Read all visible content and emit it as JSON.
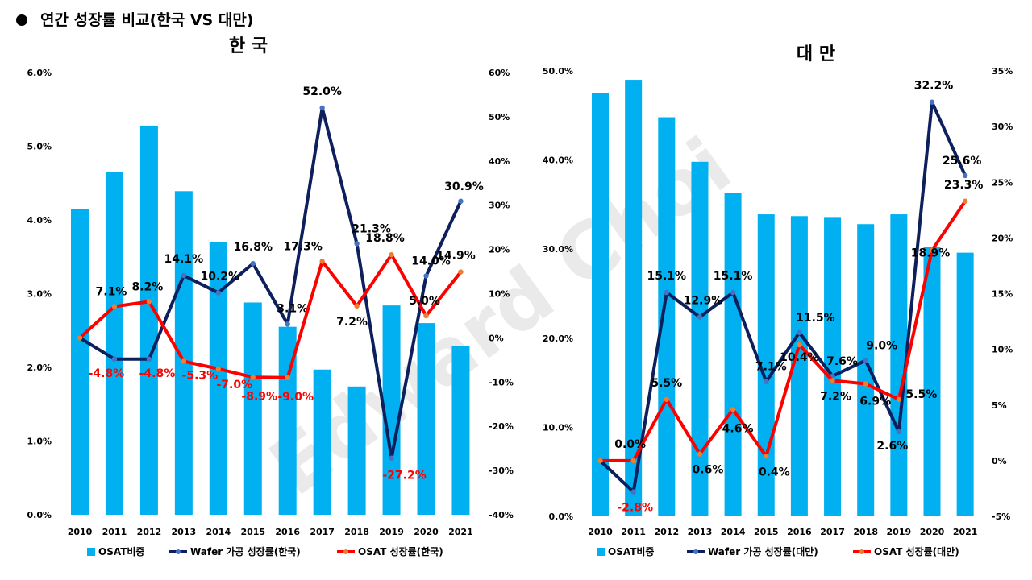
{
  "page": {
    "title": "연간 성장률 비교(한국 VS 대만)",
    "watermark": "Edward Choi"
  },
  "colors": {
    "bar": "#00b0f0",
    "wafer": "#0d1f5c",
    "wafer_marker": "#4472c4",
    "osat": "#ff0000",
    "osat_marker": "#ed7d31",
    "negative_label": "#ff0000"
  },
  "chart_data": [
    {
      "type": "bar",
      "title": "한 국",
      "categories": [
        "2010",
        "2011",
        "2012",
        "2013",
        "2014",
        "2015",
        "2016",
        "2017",
        "2018",
        "2019",
        "2020",
        "2021"
      ],
      "y_left": {
        "min": 0,
        "max": 6,
        "step": 1,
        "ticks": [
          "0.0%",
          "1.0%",
          "2.0%",
          "3.0%",
          "4.0%",
          "5.0%",
          "6.0%"
        ]
      },
      "y_right": {
        "min": -40,
        "max": 60,
        "step": 10,
        "ticks": [
          "-40%",
          "-30%",
          "-20%",
          "-10%",
          "0%",
          "10%",
          "20%",
          "30%",
          "40%",
          "50%",
          "60%"
        ]
      },
      "series": [
        {
          "name": "OSAT비중",
          "type": "bar",
          "axis": "left",
          "values": [
            4.15,
            4.65,
            5.28,
            4.39,
            3.7,
            2.88,
            2.55,
            1.97,
            1.74,
            2.84,
            2.6,
            2.29
          ]
        },
        {
          "name": "Wafer 가공 성장률(한국)",
          "type": "line",
          "axis": "right",
          "values": [
            0.0,
            -4.8,
            -4.8,
            14.1,
            10.2,
            16.8,
            3.1,
            52.0,
            21.3,
            -27.2,
            14.0,
            30.9
          ],
          "labels": [
            "",
            "",
            "",
            "14.1%",
            "10.2%",
            "16.8%",
            "3.1%",
            "52.0%",
            "21.3%",
            "",
            "14.0%",
            "30.9%"
          ]
        },
        {
          "name": "OSAT 성장률(한국)",
          "type": "line",
          "axis": "right",
          "values": [
            0.0,
            7.1,
            8.2,
            -5.3,
            -7.0,
            -8.9,
            -9.0,
            17.3,
            7.2,
            18.8,
            5.0,
            14.9
          ],
          "labels": [
            "",
            "7.1%",
            "8.2%",
            "-5.3%",
            "-7.0%",
            "-8.9%",
            "-9.0%",
            "17.3%",
            "7.2%",
            "18.8%",
            "5.0%",
            "14.9%"
          ]
        }
      ],
      "extra_labels": [
        "-4.8%",
        "-4.8%",
        "-27.2%"
      ]
    },
    {
      "type": "bar",
      "title": "대 만",
      "categories": [
        "2010",
        "2011",
        "2012",
        "2013",
        "2014",
        "2015",
        "2016",
        "2017",
        "2018",
        "2019",
        "2020",
        "2021"
      ],
      "y_left": {
        "min": 0,
        "max": 50,
        "step": 10,
        "ticks": [
          "0.0%",
          "10.0%",
          "20.0%",
          "30.0%",
          "40.0%",
          "50.0%"
        ]
      },
      "y_right": {
        "min": -5,
        "max": 35,
        "step": 5,
        "ticks": [
          "-5%",
          "0%",
          "5%",
          "10%",
          "15%",
          "20%",
          "25%",
          "30%",
          "35%"
        ]
      },
      "series": [
        {
          "name": "OSAT비중",
          "type": "bar",
          "axis": "left",
          "values": [
            47.5,
            49.0,
            44.8,
            39.8,
            36.3,
            33.9,
            33.7,
            33.6,
            32.8,
            33.9,
            30.2,
            29.6
          ]
        },
        {
          "name": "Wafer 가공 성장률(대만)",
          "type": "line",
          "axis": "right",
          "values": [
            0.0,
            -2.8,
            15.1,
            12.9,
            15.1,
            7.1,
            11.5,
            7.6,
            9.0,
            2.6,
            32.2,
            25.6
          ],
          "labels": [
            "",
            "",
            "15.1%",
            "12.9%",
            "15.1%",
            "7.1%",
            "11.5%",
            "7.6%",
            "9.0%",
            "2.6%",
            "32.2%",
            "25.6%"
          ]
        },
        {
          "name": "OSAT 성장률(대만)",
          "type": "line",
          "axis": "right",
          "values": [
            0.0,
            0.0,
            5.5,
            0.6,
            4.6,
            0.4,
            10.4,
            7.2,
            6.9,
            5.5,
            18.9,
            23.3
          ],
          "labels": [
            "",
            "0.0%",
            "5.5%",
            "0.6%",
            "4.6%",
            "0.4%",
            "10.4%",
            "7.2%",
            "6.9%",
            "5.5%",
            "18.9%",
            "23.3%"
          ]
        }
      ],
      "extra_labels": [
        "-2.8%"
      ]
    }
  ]
}
